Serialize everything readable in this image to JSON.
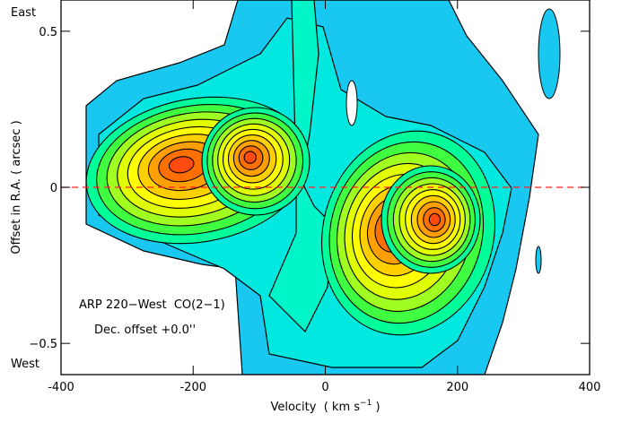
{
  "chart_data": {
    "type": "contour",
    "xlim": [
      -400,
      400
    ],
    "ylim": [
      -0.6,
      0.6
    ],
    "xticks": [
      -400,
      -200,
      0,
      200,
      400
    ],
    "yticks": [
      {
        "value": -0.5,
        "label": "−0.5"
      },
      0,
      0.5
    ],
    "xlabel": {
      "text": "Velocity  ( km s",
      "superscript": "−1",
      "tail": " )"
    },
    "ylabel": "Offset in R.A. ( arcsec )",
    "annotations": [
      "ARP 220−West  CO(2−1)",
      "Dec. offset +0.0''"
    ],
    "y_top_label": "East",
    "y_bottom_label": "West",
    "reference_line": {
      "y": 0,
      "color": "#ff2020"
    }
  }
}
